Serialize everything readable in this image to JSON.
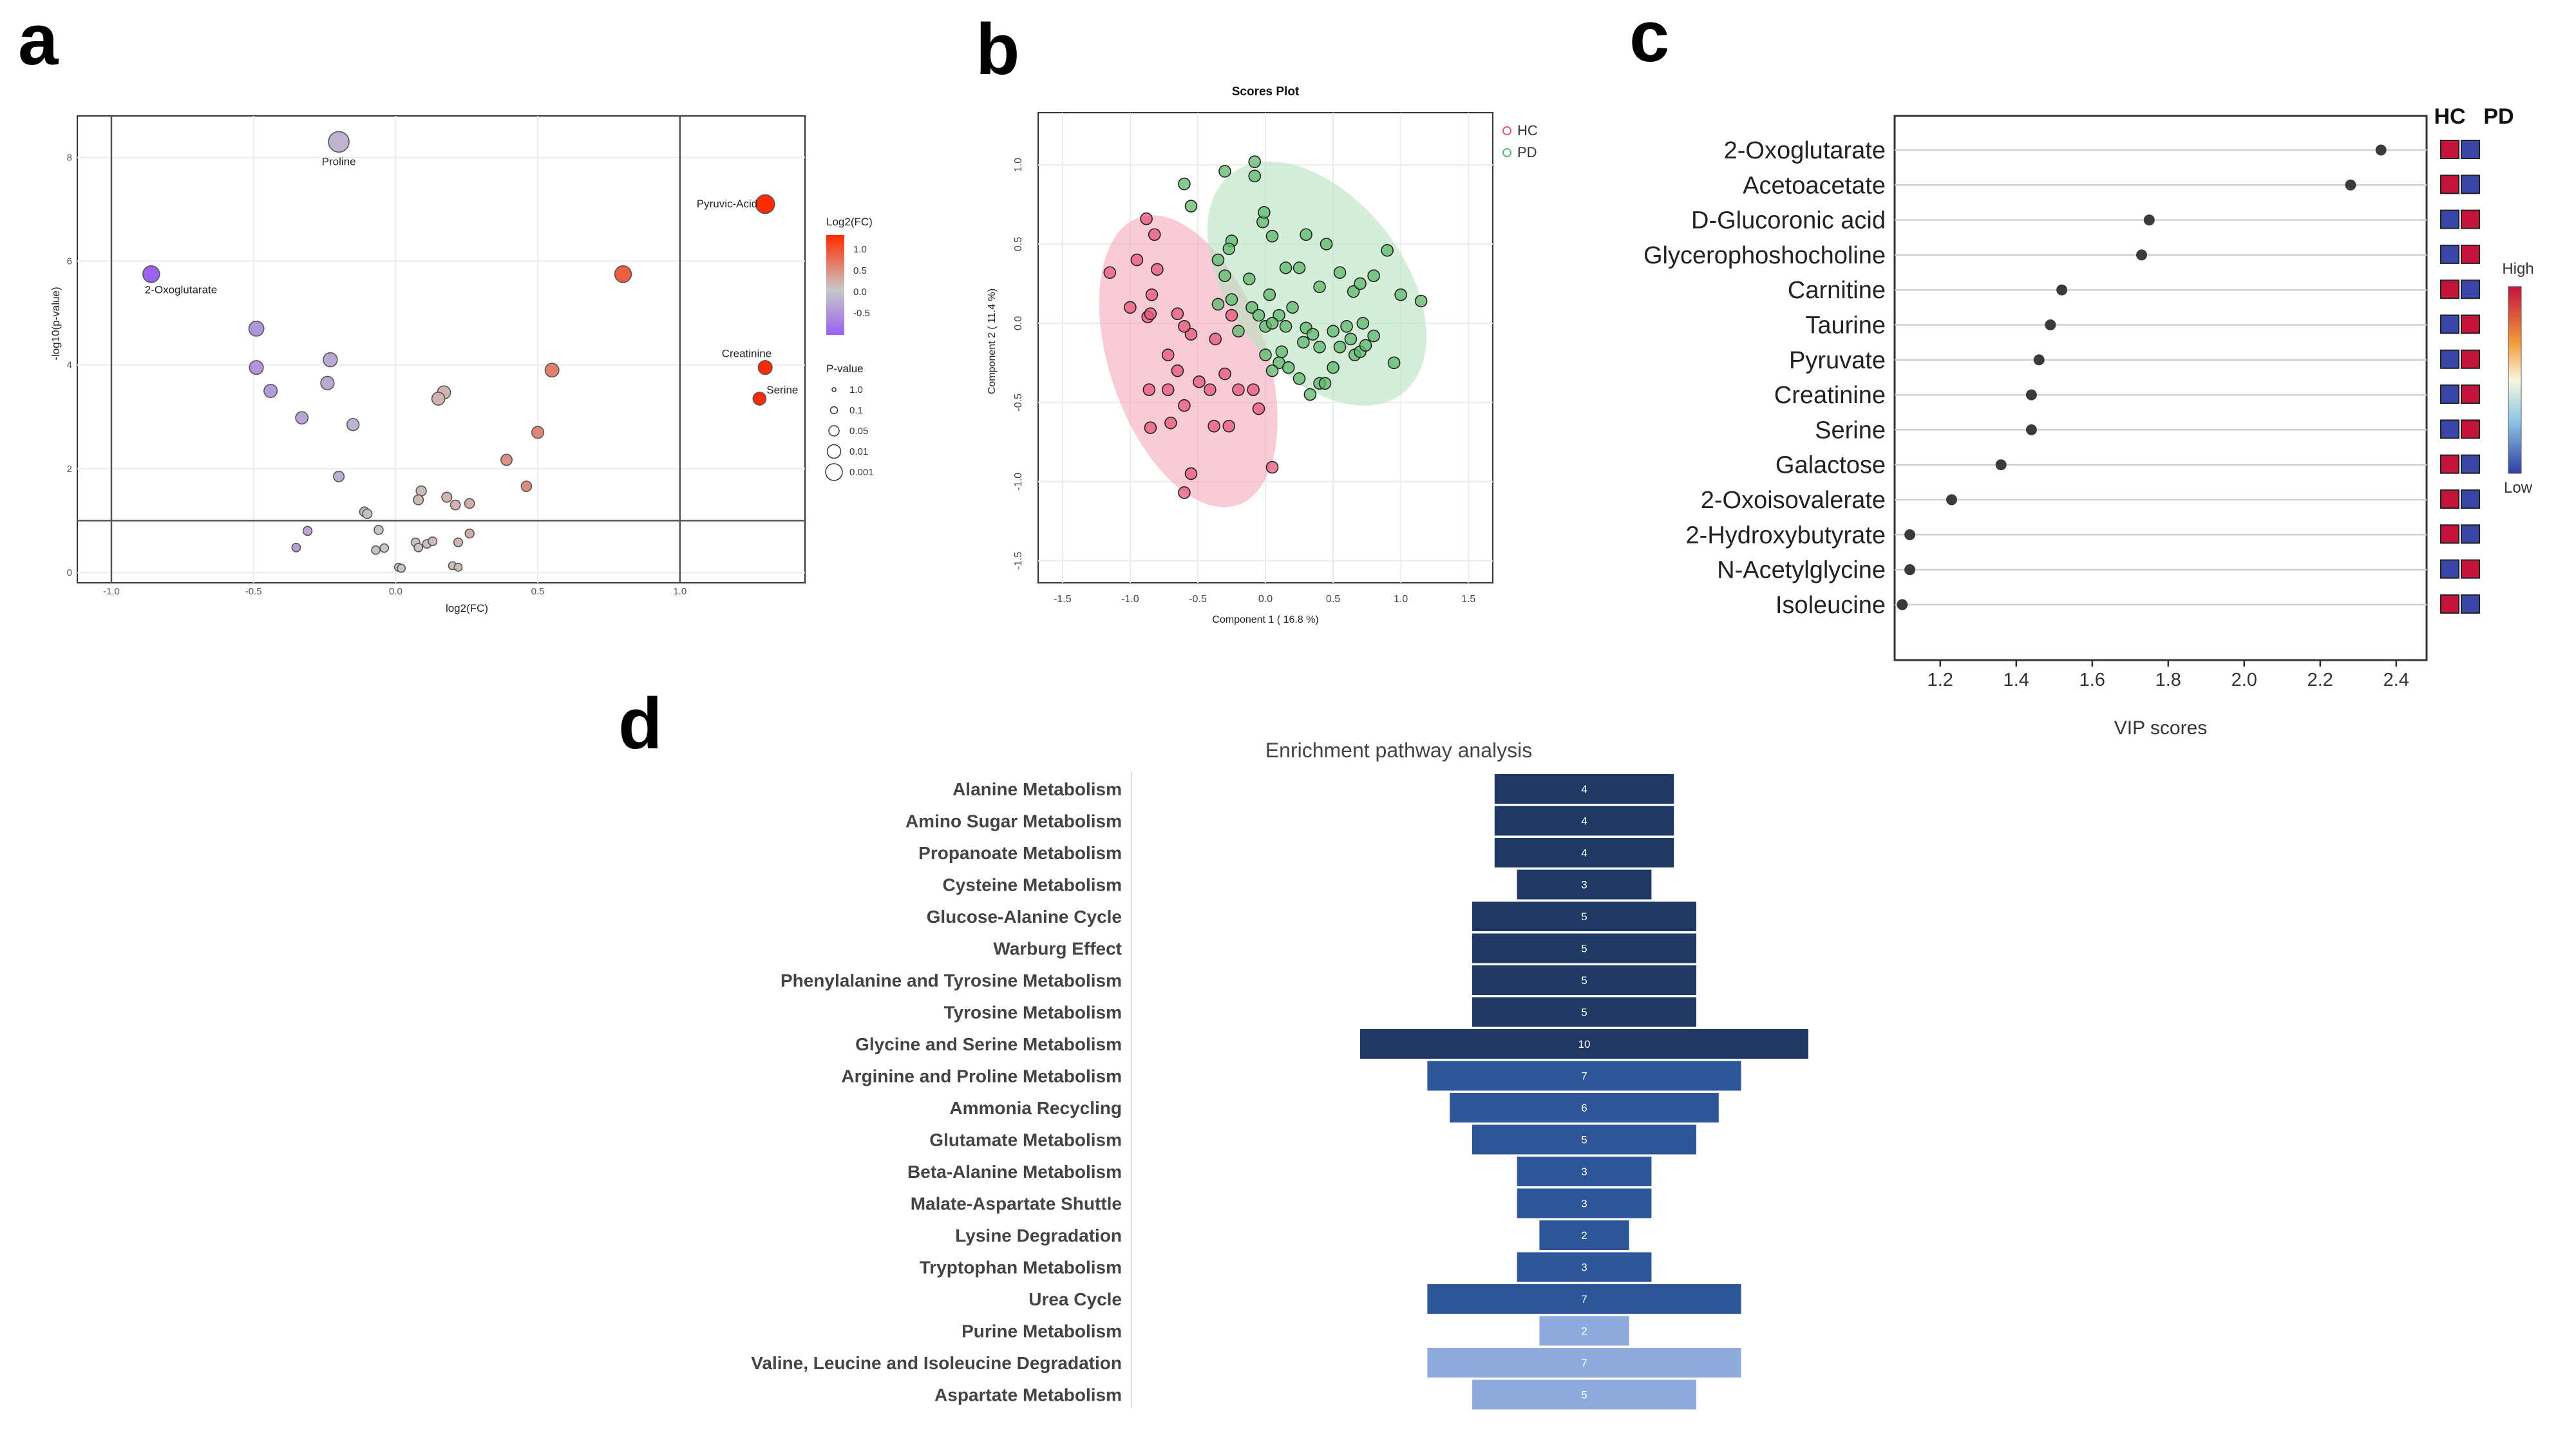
{
  "panels": {
    "a": "a",
    "b": "b",
    "c": "c",
    "d": "d"
  },
  "chart_data": [
    {
      "id": "a",
      "type": "scatter",
      "title": "",
      "xlabel": "log2(FC)",
      "ylabel": "-log10(p-value)",
      "xlim": [
        -1.12,
        1.44
      ],
      "ylim": [
        -0.2,
        8.8
      ],
      "xticks": [
        -1.0,
        -0.5,
        0.0,
        0.5,
        1.0
      ],
      "xtick_labels": [
        "-1.0",
        "-0.5",
        "0.0",
        "0.5",
        "1.0"
      ],
      "yticks": [
        0,
        2,
        4,
        6,
        8
      ],
      "ytick_labels": [
        "0",
        "2",
        "4",
        "6",
        "8"
      ],
      "vlines": [
        -1.0,
        1.0
      ],
      "hline": 1.0,
      "colors": {
        "low": "#9a62ee",
        "mid": "#c8c8c8",
        "high": "#ff2a00",
        "point_edge": "#555555"
      },
      "points": [
        {
          "x": -0.2,
          "y": 8.3,
          "fc": -0.2,
          "label": "Proline"
        },
        {
          "x": 1.3,
          "y": 7.1,
          "fc": 1.2,
          "label": "Pyruvic-Acid"
        },
        {
          "x": -0.86,
          "y": 5.75,
          "fc": -1.0,
          "label": "2-Oxoglutarate"
        },
        {
          "x": 0.8,
          "y": 5.75,
          "fc": 0.8
        },
        {
          "x": 1.3,
          "y": 3.95,
          "fc": 1.2,
          "label": "Creatinine"
        },
        {
          "x": 1.28,
          "y": 3.35,
          "fc": 1.2,
          "label": "Serine"
        },
        {
          "x": -0.49,
          "y": 4.7,
          "fc": -0.5
        },
        {
          "x": -0.49,
          "y": 3.95,
          "fc": -0.5
        },
        {
          "x": -0.23,
          "y": 4.1,
          "fc": -0.3
        },
        {
          "x": -0.24,
          "y": 3.65,
          "fc": -0.3
        },
        {
          "x": -0.44,
          "y": 3.5,
          "fc": -0.45
        },
        {
          "x": -0.33,
          "y": 2.98,
          "fc": -0.35
        },
        {
          "x": -0.15,
          "y": 2.85,
          "fc": -0.2
        },
        {
          "x": 0.55,
          "y": 3.9,
          "fc": 0.55
        },
        {
          "x": 0.17,
          "y": 3.47,
          "fc": 0.15
        },
        {
          "x": 0.15,
          "y": 3.35,
          "fc": 0.15
        },
        {
          "x": 0.5,
          "y": 2.7,
          "fc": 0.5
        },
        {
          "x": 0.39,
          "y": 2.17,
          "fc": 0.4
        },
        {
          "x": 0.46,
          "y": 1.66,
          "fc": 0.45
        },
        {
          "x": -0.2,
          "y": 1.85,
          "fc": -0.25
        },
        {
          "x": 0.09,
          "y": 1.57,
          "fc": 0.1
        },
        {
          "x": 0.08,
          "y": 1.4,
          "fc": 0.1
        },
        {
          "x": 0.18,
          "y": 1.45,
          "fc": 0.15
        },
        {
          "x": 0.21,
          "y": 1.3,
          "fc": 0.15
        },
        {
          "x": 0.26,
          "y": 1.33,
          "fc": 0.2
        },
        {
          "x": -0.11,
          "y": 1.17,
          "fc": -0.1
        },
        {
          "x": -0.1,
          "y": 1.13,
          "fc": -0.1
        },
        {
          "x": -0.31,
          "y": 0.8,
          "fc": -0.35
        },
        {
          "x": -0.35,
          "y": 0.48,
          "fc": -0.4
        },
        {
          "x": -0.06,
          "y": 0.82,
          "fc": -0.05
        },
        {
          "x": -0.07,
          "y": 0.43,
          "fc": -0.05
        },
        {
          "x": -0.04,
          "y": 0.47,
          "fc": -0.05
        },
        {
          "x": 0.26,
          "y": 0.75,
          "fc": 0.2
        },
        {
          "x": 0.07,
          "y": 0.58,
          "fc": 0.05
        },
        {
          "x": 0.08,
          "y": 0.48,
          "fc": 0.05
        },
        {
          "x": 0.11,
          "y": 0.55,
          "fc": 0.1
        },
        {
          "x": 0.13,
          "y": 0.6,
          "fc": 0.1
        },
        {
          "x": 0.22,
          "y": 0.58,
          "fc": 0.15
        },
        {
          "x": 0.01,
          "y": 0.1,
          "fc": 0.0
        },
        {
          "x": 0.02,
          "y": 0.08,
          "fc": 0.0
        },
        {
          "x": 0.2,
          "y": 0.13,
          "fc": 0.1
        },
        {
          "x": 0.22,
          "y": 0.1,
          "fc": 0.1
        }
      ],
      "legend_color": {
        "title": "Log2(FC)",
        "labels": [
          "1.0",
          "0.5",
          "0.0",
          "-0.5"
        ]
      },
      "legend_size": {
        "title": "P-value",
        "labels": [
          "1.0",
          "0.1",
          "0.05",
          "0.01",
          "0.001"
        ]
      }
    },
    {
      "id": "b",
      "type": "scatter",
      "title": "Scores Plot",
      "xlabel": "Component 1 ( 16.8 %)",
      "ylabel": "Component 2 ( 11.4 %)",
      "xlim": [
        -1.68,
        1.68
      ],
      "ylim": [
        -1.64,
        1.33
      ],
      "xticks": [
        -1.5,
        -1.0,
        -0.5,
        0.0,
        0.5,
        1.0,
        1.5
      ],
      "xtick_labels": [
        "-1.5",
        "-1.0",
        "-0.5",
        "0.0",
        "0.5",
        "1.0",
        "1.5"
      ],
      "yticks": [
        -1.5,
        -1.0,
        -0.5,
        0.0,
        0.5,
        1.0
      ],
      "ytick_labels": [
        "-1.5",
        "-1.0",
        "-0.5",
        "0.0",
        "0.5",
        "1.0"
      ],
      "legend": [
        "HC",
        "PD"
      ],
      "colors": {
        "HC": "#e8577a",
        "PD": "#5cb86a",
        "HC_fill": "#f4a8bb",
        "PD_fill": "#b9e3bf"
      },
      "ellipses": [
        {
          "group": "HC",
          "cx": -0.57,
          "cy": -0.24,
          "rx": 0.58,
          "ry": 0.96,
          "angle": 19
        },
        {
          "group": "PD",
          "cx": 0.38,
          "cy": 0.25,
          "rx": 0.64,
          "ry": 0.88,
          "angle": 38
        }
      ],
      "series": [
        {
          "name": "HC",
          "points": [
            [
              -0.88,
              0.66
            ],
            [
              -0.82,
              0.56
            ],
            [
              -1.15,
              0.32
            ],
            [
              -0.95,
              0.4
            ],
            [
              -0.8,
              0.34
            ],
            [
              -1.0,
              0.1
            ],
            [
              -0.84,
              0.18
            ],
            [
              -0.87,
              0.04
            ],
            [
              -0.85,
              0.06
            ],
            [
              -0.65,
              0.06
            ],
            [
              -0.55,
              -0.07
            ],
            [
              -0.6,
              -0.02
            ],
            [
              -0.25,
              0.05
            ],
            [
              -0.37,
              -0.1
            ],
            [
              -0.72,
              -0.2
            ],
            [
              -0.65,
              -0.3
            ],
            [
              -0.49,
              -0.37
            ],
            [
              -0.72,
              -0.42
            ],
            [
              -0.86,
              -0.42
            ],
            [
              -0.41,
              -0.42
            ],
            [
              -0.3,
              -0.32
            ],
            [
              -0.2,
              -0.42
            ],
            [
              -0.09,
              -0.42
            ],
            [
              -0.05,
              -0.54
            ],
            [
              -0.6,
              -0.52
            ],
            [
              -0.7,
              -0.63
            ],
            [
              -0.85,
              -0.66
            ],
            [
              -0.27,
              -0.65
            ],
            [
              -0.38,
              -0.65
            ],
            [
              -0.55,
              -0.95
            ],
            [
              -0.6,
              -1.07
            ],
            [
              0.05,
              -0.91
            ]
          ]
        },
        {
          "name": "PD",
          "points": [
            [
              -0.6,
              0.88
            ],
            [
              -0.3,
              0.96
            ],
            [
              -0.08,
              1.02
            ],
            [
              -0.08,
              0.93
            ],
            [
              -0.02,
              0.64
            ],
            [
              -0.01,
              0.7
            ],
            [
              0.05,
              0.55
            ],
            [
              -0.55,
              0.74
            ],
            [
              -0.25,
              0.52
            ],
            [
              -0.27,
              0.47
            ],
            [
              -0.35,
              0.4
            ],
            [
              0.3,
              0.56
            ],
            [
              0.45,
              0.5
            ],
            [
              0.9,
              0.46
            ],
            [
              0.8,
              0.3
            ],
            [
              1.15,
              0.14
            ],
            [
              1.0,
              0.18
            ],
            [
              0.25,
              0.35
            ],
            [
              0.55,
              0.32
            ],
            [
              0.65,
              0.2
            ],
            [
              0.7,
              0.25
            ],
            [
              0.4,
              0.23
            ],
            [
              -0.3,
              0.3
            ],
            [
              -0.12,
              0.28
            ],
            [
              -0.25,
              0.15
            ],
            [
              -0.35,
              0.12
            ],
            [
              -0.1,
              0.1
            ],
            [
              0.1,
              0.05
            ],
            [
              0.2,
              0.1
            ],
            [
              -0.05,
              0.05
            ],
            [
              0.0,
              -0.02
            ],
            [
              0.05,
              0.0
            ],
            [
              0.15,
              -0.02
            ],
            [
              0.3,
              -0.03
            ],
            [
              0.35,
              -0.07
            ],
            [
              0.5,
              -0.05
            ],
            [
              0.6,
              -0.02
            ],
            [
              0.72,
              0.0
            ],
            [
              0.4,
              -0.15
            ],
            [
              0.55,
              -0.15
            ],
            [
              0.63,
              -0.1
            ],
            [
              0.66,
              -0.2
            ],
            [
              0.8,
              -0.08
            ],
            [
              0.95,
              -0.25
            ],
            [
              0.7,
              -0.18
            ],
            [
              0.1,
              -0.25
            ],
            [
              0.12,
              -0.18
            ],
            [
              0.05,
              -0.3
            ],
            [
              0.25,
              -0.35
            ],
            [
              0.4,
              -0.38
            ],
            [
              0.5,
              -0.28
            ],
            [
              0.17,
              -0.28
            ],
            [
              0.0,
              -0.2
            ],
            [
              0.28,
              -0.12
            ],
            [
              -0.2,
              -0.05
            ],
            [
              0.15,
              0.35
            ],
            [
              0.33,
              -0.45
            ],
            [
              0.44,
              -0.38
            ],
            [
              0.74,
              -0.14
            ],
            [
              0.03,
              0.18
            ]
          ]
        }
      ]
    },
    {
      "id": "c",
      "type": "dot",
      "xlabel": "VIP scores",
      "xlim": [
        1.08,
        2.48
      ],
      "xticks": [
        1.2,
        1.4,
        1.6,
        1.8,
        2.0,
        2.2,
        2.4
      ],
      "xtick_labels": [
        "1.2",
        "1.4",
        "1.6",
        "1.8",
        "2.0",
        "2.2",
        "2.4"
      ],
      "categories": [
        "2-Oxoglutarate",
        "Acetoacetate",
        "D-Glucoronic acid",
        "Glycerophoshocholine",
        "Carnitine",
        "Taurine",
        "Pyruvate",
        "Creatinine",
        "Serine",
        "Galactose",
        "2-Oxoisovalerate",
        "2-Hydroxybutyrate",
        "N-Acetylglycine",
        "Isoleucine"
      ],
      "values": [
        2.36,
        2.28,
        1.75,
        1.73,
        1.52,
        1.49,
        1.46,
        1.44,
        1.44,
        1.36,
        1.23,
        1.12,
        1.12,
        1.1
      ],
      "heatmap_columns": [
        "HC",
        "PD"
      ],
      "heatmap": [
        [
          "High",
          "Low"
        ],
        [
          "High",
          "Low"
        ],
        [
          "Low",
          "High"
        ],
        [
          "Low",
          "High"
        ],
        [
          "High",
          "Low"
        ],
        [
          "Low",
          "High"
        ],
        [
          "Low",
          "High"
        ],
        [
          "Low",
          "High"
        ],
        [
          "Low",
          "High"
        ],
        [
          "High",
          "Low"
        ],
        [
          "High",
          "Low"
        ],
        [
          "High",
          "Low"
        ],
        [
          "Low",
          "High"
        ],
        [
          "High",
          "Low"
        ]
      ],
      "colorbar_labels": {
        "high": "High",
        "low": "Low"
      },
      "colors": {
        "High": "#c4143c",
        "Low": "#3a47a8",
        "dot": "#3a3a3a"
      }
    },
    {
      "id": "d",
      "type": "bar",
      "orientation": "horizontal",
      "centered": true,
      "title": "Enrichment pathway analysis",
      "categories": [
        "Alanine Metabolism",
        "Amino Sugar Metabolism",
        "Propanoate Metabolism",
        "Cysteine Metabolism",
        "Glucose-Alanine Cycle",
        "Warburg Effect",
        "Phenylalanine and Tyrosine Metabolism",
        "Tyrosine Metabolism",
        "Glycine and Serine Metabolism",
        "Arginine and Proline Metabolism",
        "Ammonia Recycling",
        "Glutamate Metabolism",
        "Beta-Alanine Metabolism",
        "Malate-Aspartate Shuttle",
        "Lysine Degradation",
        "Tryptophan Metabolism",
        "Urea Cycle",
        "Purine Metabolism",
        "Valine, Leucine and Isoleucine Degradation",
        "Aspartate Metabolism"
      ],
      "values": [
        4,
        4,
        4,
        3,
        5,
        5,
        5,
        5,
        10,
        7,
        6,
        5,
        3,
        3,
        2,
        3,
        7,
        2,
        7,
        5
      ],
      "colors": [
        "#1f3864",
        "#1f3864",
        "#1f3864",
        "#1f3864",
        "#1f3864",
        "#1f3864",
        "#1f3864",
        "#1f3864",
        "#1f3864",
        "#2e5597",
        "#2e5597",
        "#2e5597",
        "#2e5597",
        "#2e5597",
        "#2e5597",
        "#2e5597",
        "#2e5597",
        "#8faadc",
        "#8faadc",
        "#8faadc"
      ]
    }
  ]
}
